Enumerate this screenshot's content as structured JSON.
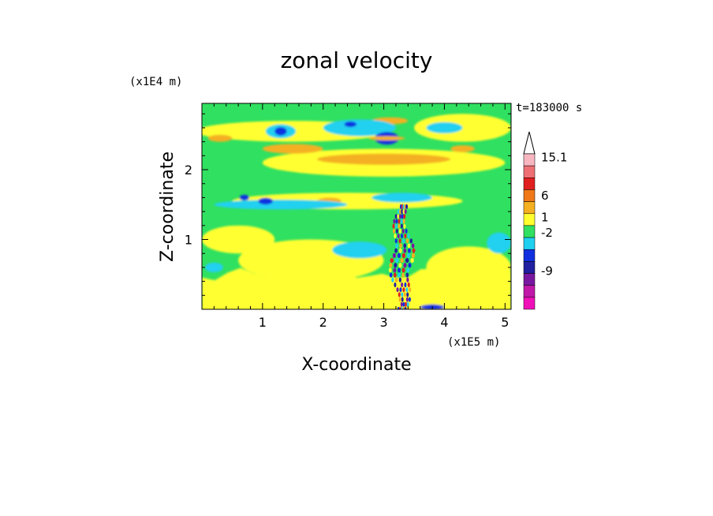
{
  "chart_data": {
    "type": "heatmap",
    "title": "zonal velocity",
    "xlabel": "X-coordinate",
    "ylabel": "Z-coordinate",
    "x_unit": "(x1E5 m)",
    "y_unit": "(x1E4 m)",
    "time_label": "t=183000 s",
    "xlim": [
      0,
      5.1
    ],
    "ylim": [
      0,
      2.95
    ],
    "x_ticks": [
      "1",
      "2",
      "3",
      "4",
      "5"
    ],
    "x_tick_values": [
      1,
      2,
      3,
      4,
      5
    ],
    "y_ticks": [
      "1",
      "2"
    ],
    "y_tick_values": [
      1,
      2
    ],
    "colorbar": {
      "labels": [
        "15.1",
        "6",
        "1",
        "-2",
        "-9"
      ],
      "level_values": [
        15.1,
        6,
        1,
        -2,
        -9
      ],
      "colors": [
        "#f7b6c0",
        "#ee7074",
        "#e02020",
        "#f07818",
        "#f4b020",
        "#ffff30",
        "#30e060",
        "#20d0f0",
        "#1030e0",
        "#2020a0",
        "#7818a0",
        "#c018a8",
        "#f010b8"
      ],
      "extend_top": true
    },
    "field_colors": {
      "green": "#30e060",
      "yellow": "#ffff30",
      "orange": "#f4b020",
      "cyan": "#20d0f0",
      "blue": "#1030e0",
      "darkblue": "#2020a0",
      "red": "#e02020",
      "purple": "#7818a0"
    },
    "regions": [
      {
        "kind": "band",
        "color": "yellow",
        "x": [
          0,
          5.1
        ],
        "z": [
          0,
          0.5
        ]
      },
      {
        "kind": "blob",
        "color": "yellow",
        "cx": 1.8,
        "cz": 0.7,
        "rx": 1.2,
        "rz": 0.3
      },
      {
        "kind": "blob",
        "color": "yellow",
        "cx": 4.4,
        "cz": 0.6,
        "rx": 0.7,
        "rz": 0.3
      },
      {
        "kind": "blob",
        "color": "yellow",
        "cx": 0.6,
        "cz": 1.0,
        "rx": 0.6,
        "rz": 0.2
      },
      {
        "kind": "blob",
        "color": "yellow",
        "cx": 2.4,
        "cz": 1.55,
        "rx": 1.9,
        "rz": 0.12
      },
      {
        "kind": "blob",
        "color": "yellow",
        "cx": 3.0,
        "cz": 2.1,
        "rx": 2.0,
        "rz": 0.2
      },
      {
        "kind": "blob",
        "color": "yellow",
        "cx": 1.5,
        "cz": 2.55,
        "rx": 1.6,
        "rz": 0.15
      },
      {
        "kind": "blob",
        "color": "yellow",
        "cx": 4.3,
        "cz": 2.6,
        "rx": 0.8,
        "rz": 0.2
      },
      {
        "kind": "blob",
        "color": "orange",
        "cx": 3.0,
        "cz": 2.15,
        "rx": 1.1,
        "rz": 0.08
      },
      {
        "kind": "blob",
        "color": "orange",
        "cx": 1.5,
        "cz": 2.3,
        "rx": 0.5,
        "rz": 0.07
      },
      {
        "kind": "blob",
        "color": "orange",
        "cx": 0.3,
        "cz": 2.45,
        "rx": 0.2,
        "rz": 0.05
      },
      {
        "kind": "blob",
        "color": "orange",
        "cx": 3.1,
        "cz": 2.7,
        "rx": 0.3,
        "rz": 0.05
      },
      {
        "kind": "blob",
        "color": "orange",
        "cx": 4.3,
        "cz": 2.3,
        "rx": 0.2,
        "rz": 0.05
      },
      {
        "kind": "blob",
        "color": "orange",
        "cx": 2.1,
        "cz": 1.55,
        "rx": 0.2,
        "rz": 0.05
      },
      {
        "kind": "blob",
        "color": "cyan",
        "cx": 2.6,
        "cz": 0.85,
        "rx": 0.45,
        "rz": 0.12
      },
      {
        "kind": "blob",
        "color": "cyan",
        "cx": 4.9,
        "cz": 0.95,
        "rx": 0.2,
        "rz": 0.15
      },
      {
        "kind": "blob",
        "color": "cyan",
        "cx": 1.3,
        "cz": 1.5,
        "rx": 1.1,
        "rz": 0.07
      },
      {
        "kind": "blob",
        "color": "cyan",
        "cx": 3.3,
        "cz": 1.6,
        "rx": 0.5,
        "rz": 0.07
      },
      {
        "kind": "blob",
        "color": "cyan",
        "cx": 1.3,
        "cz": 2.55,
        "rx": 0.25,
        "rz": 0.1
      },
      {
        "kind": "blob",
        "color": "cyan",
        "cx": 2.6,
        "cz": 2.6,
        "rx": 0.6,
        "rz": 0.12
      },
      {
        "kind": "blob",
        "color": "cyan",
        "cx": 4.0,
        "cz": 2.6,
        "rx": 0.3,
        "rz": 0.08
      },
      {
        "kind": "blob",
        "color": "cyan",
        "cx": 0.2,
        "cz": 0.6,
        "rx": 0.15,
        "rz": 0.07
      },
      {
        "kind": "blob",
        "color": "blue",
        "cx": 3.05,
        "cz": 2.45,
        "rx": 0.2,
        "rz": 0.09
      },
      {
        "kind": "blob",
        "color": "blue",
        "cx": 1.3,
        "cz": 2.55,
        "rx": 0.1,
        "rz": 0.06
      },
      {
        "kind": "blob",
        "color": "blue",
        "cx": 1.05,
        "cz": 1.55,
        "rx": 0.12,
        "rz": 0.05
      },
      {
        "kind": "blob",
        "color": "blue",
        "cx": 0.7,
        "cz": 1.6,
        "rx": 0.08,
        "rz": 0.04
      },
      {
        "kind": "blob",
        "color": "blue",
        "cx": 3.8,
        "cz": 0.03,
        "rx": 0.2,
        "rz": 0.04
      },
      {
        "kind": "blob",
        "color": "blue",
        "cx": 2.45,
        "cz": 2.65,
        "rx": 0.1,
        "rz": 0.04
      },
      {
        "kind": "blob",
        "color": "orange",
        "cx": 3.05,
        "cz": 2.45,
        "rx": 0.3,
        "rz": 0.03
      }
    ],
    "wave_packet": {
      "x_center": 3.3,
      "z_range": [
        0.0,
        1.5
      ],
      "colors": [
        "blue",
        "red",
        "cyan",
        "orange",
        "darkblue",
        "yellow",
        "purple"
      ]
    }
  }
}
